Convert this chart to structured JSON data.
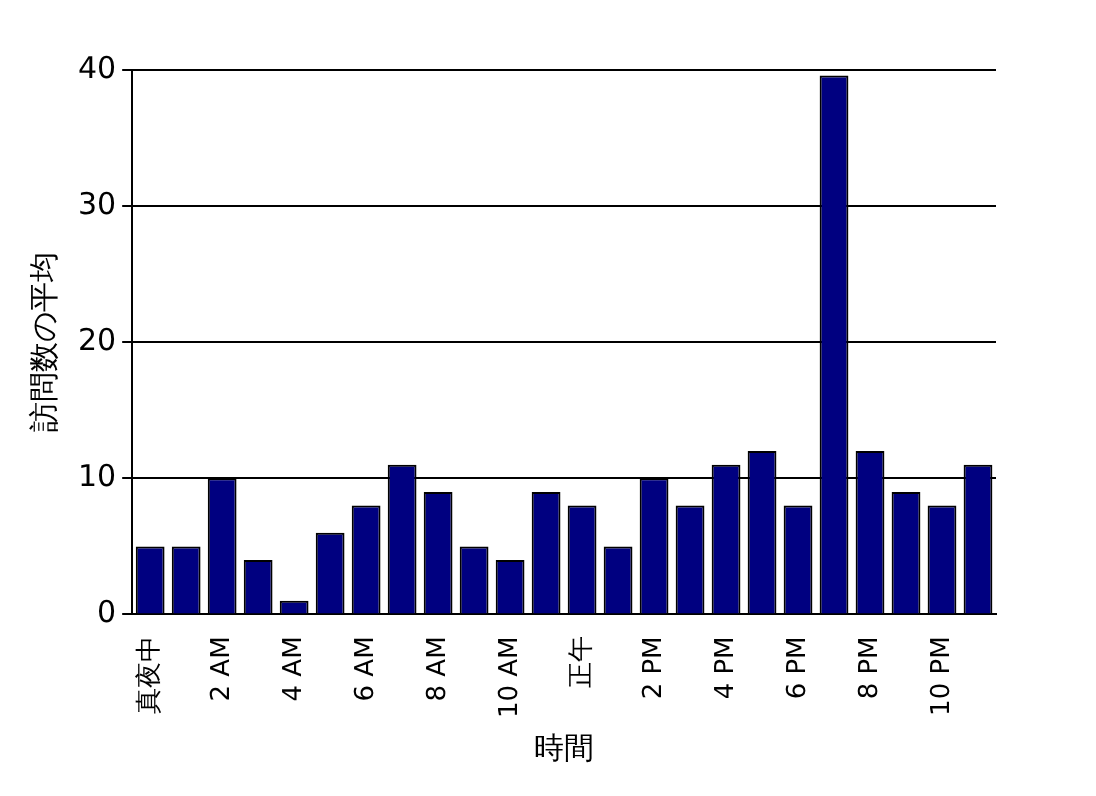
{
  "chart_data": {
    "type": "bar",
    "xlabel": "時間",
    "ylabel": "訪問数の平均",
    "categories": [
      "真夜中",
      null,
      "2 AM",
      null,
      "4 AM",
      null,
      "6 AM",
      null,
      "8 AM",
      null,
      "10 AM",
      null,
      "正午",
      null,
      "2 PM",
      null,
      "4 PM",
      null,
      "6 PM",
      null,
      "8 PM",
      null,
      "10 PM",
      null
    ],
    "values": [
      5,
      5,
      10,
      4,
      1,
      6,
      8,
      11,
      9,
      5,
      4,
      9,
      8,
      5,
      10,
      8,
      11,
      12,
      8,
      39.6,
      12,
      9,
      8,
      11
    ],
    "color": "#000080",
    "ylim": [
      0,
      40
    ],
    "yticks": [
      0,
      10,
      20,
      30,
      40
    ],
    "grid": "y",
    "legend": false
  }
}
